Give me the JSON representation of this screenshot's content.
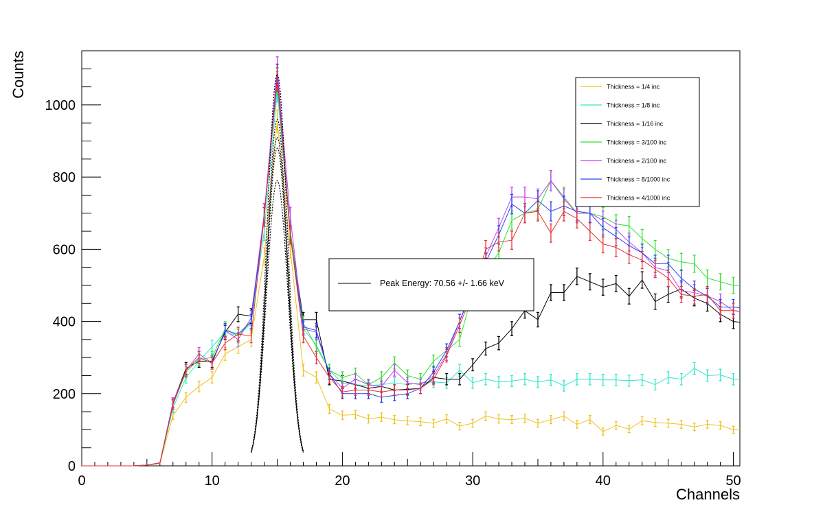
{
  "chart_data": {
    "type": "line",
    "xlabel": "Channels",
    "ylabel": "Counts",
    "xlim": [
      0,
      50.5
    ],
    "ylim": [
      0,
      1150
    ],
    "x_major_ticks": [
      0,
      10,
      20,
      30,
      40,
      50
    ],
    "y_major_ticks": [
      0,
      200,
      400,
      600,
      800,
      1000
    ],
    "x_tick_labels": [
      "0",
      "10",
      "20",
      "30",
      "40",
      "50"
    ],
    "y_tick_labels": [
      "0",
      "200",
      "400",
      "600",
      "800",
      "1000"
    ],
    "grid": false,
    "legend_position": "top-right",
    "x": [
      0,
      1,
      2,
      3,
      4,
      5,
      6,
      7,
      8,
      9,
      10,
      11,
      12,
      13,
      14,
      15,
      16,
      17,
      18,
      19,
      20,
      21,
      22,
      23,
      24,
      25,
      26,
      27,
      28,
      29,
      30,
      31,
      32,
      33,
      34,
      35,
      36,
      37,
      38,
      39,
      40,
      41,
      42,
      43,
      44,
      45,
      46,
      47,
      48,
      49,
      50,
      50.5
    ],
    "series": [
      {
        "name": "Thickness = 1/4 inc",
        "color": "#f0c020",
        "values": [
          0,
          0,
          0,
          0,
          0,
          2,
          6,
          140,
          190,
          220,
          245,
          310,
          330,
          350,
          580,
          955,
          600,
          265,
          245,
          158,
          140,
          142,
          130,
          135,
          128,
          125,
          122,
          118,
          130,
          110,
          118,
          138,
          130,
          128,
          132,
          118,
          128,
          138,
          115,
          128,
          95,
          112,
          102,
          125,
          120,
          118,
          115,
          108,
          115,
          112,
          100,
          102
        ]
      },
      {
        "name": "Thickness = 1/8 inc",
        "color": "#30e8c8",
        "values": [
          0,
          0,
          0,
          0,
          0,
          2,
          8,
          160,
          245,
          290,
          330,
          370,
          360,
          395,
          650,
          1040,
          640,
          380,
          335,
          265,
          230,
          225,
          222,
          225,
          230,
          225,
          230,
          232,
          230,
          265,
          230,
          240,
          232,
          235,
          240,
          232,
          238,
          222,
          240,
          240,
          238,
          238,
          236,
          238,
          225,
          245,
          240,
          270,
          250,
          252,
          240,
          240
        ]
      },
      {
        "name": "Thickness = 1/16 inc",
        "color": "#000000",
        "values": [
          0,
          0,
          0,
          0,
          0,
          2,
          8,
          175,
          270,
          290,
          290,
          370,
          420,
          415,
          690,
          1080,
          650,
          405,
          405,
          240,
          235,
          225,
          215,
          220,
          210,
          212,
          215,
          245,
          240,
          240,
          280,
          325,
          340,
          380,
          430,
          405,
          480,
          480,
          525,
          510,
          495,
          505,
          470,
          515,
          455,
          475,
          490,
          465,
          450,
          420,
          400,
          398
        ]
      },
      {
        "name": "Thickness = 3/100 inc",
        "color": "#30e030",
        "values": [
          0,
          0,
          0,
          0,
          0,
          2,
          8,
          170,
          260,
          295,
          300,
          380,
          360,
          400,
          700,
          1060,
          650,
          395,
          330,
          265,
          245,
          255,
          225,
          245,
          285,
          250,
          240,
          290,
          320,
          350,
          480,
          540,
          590,
          680,
          700,
          710,
          790,
          745,
          700,
          700,
          690,
          670,
          665,
          630,
          600,
          575,
          565,
          560,
          520,
          510,
          500,
          500
        ]
      },
      {
        "name": "Thickness = 2/100 inc",
        "color": "#c040f0",
        "values": [
          0,
          0,
          0,
          0,
          0,
          2,
          8,
          175,
          265,
          310,
          285,
          375,
          350,
          410,
          700,
          1100,
          690,
          380,
          370,
          255,
          215,
          240,
          225,
          220,
          265,
          230,
          225,
          250,
          310,
          400,
          490,
          580,
          660,
          745,
          745,
          740,
          790,
          740,
          700,
          700,
          680,
          655,
          620,
          590,
          550,
          540,
          485,
          480,
          470,
          455,
          430,
          428
        ]
      },
      {
        "name": "Thickness = 8/1000 inc",
        "color": "#2040f0",
        "values": [
          0,
          0,
          0,
          0,
          0,
          2,
          8,
          170,
          265,
          300,
          285,
          375,
          365,
          400,
          690,
          1080,
          640,
          385,
          375,
          255,
          200,
          200,
          200,
          190,
          195,
          200,
          215,
          260,
          320,
          400,
          495,
          565,
          640,
          725,
          700,
          735,
          705,
          720,
          705,
          700,
          660,
          635,
          610,
          590,
          560,
          560,
          520,
          490,
          470,
          440,
          440,
          438
        ]
      },
      {
        "name": "Thickness = 4/1000 inc",
        "color": "#e83030",
        "values": [
          0,
          0,
          0,
          0,
          0,
          2,
          8,
          170,
          265,
          300,
          285,
          340,
          365,
          360,
          690,
          1070,
          640,
          360,
          300,
          245,
          205,
          210,
          210,
          205,
          210,
          210,
          215,
          240,
          305,
          390,
          480,
          600,
          620,
          625,
          700,
          705,
          645,
          705,
          685,
          650,
          615,
          605,
          585,
          570,
          545,
          520,
          475,
          470,
          475,
          430,
          430,
          428
        ]
      }
    ],
    "fit_curves": [
      {
        "mean": 15,
        "sigma": 0.78,
        "amplitude": 1085
      },
      {
        "mean": 15,
        "sigma": 0.78,
        "amplitude": 960
      },
      {
        "mean": 15,
        "sigma": 0.8,
        "amplitude": 910
      },
      {
        "mean": 15,
        "sigma": 0.8,
        "amplitude": 880
      },
      {
        "mean": 15,
        "sigma": 0.82,
        "amplitude": 790
      }
    ],
    "fit_label": "Peak Energy: 70.56 +/- 1.66 keV"
  }
}
